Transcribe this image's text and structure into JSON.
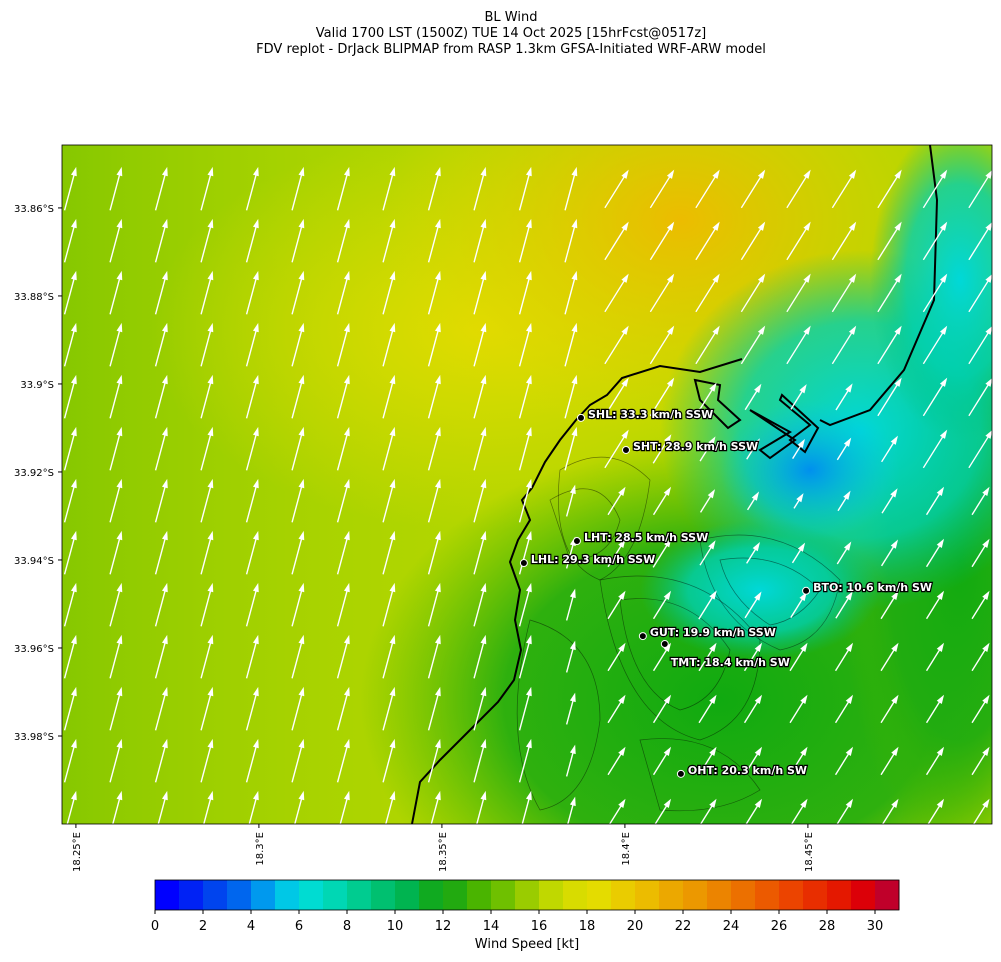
{
  "header": {
    "lines": [
      "BL Wind",
      "Valid 1700 LST (1500Z) TUE 14 Oct 2025 [15hrFcst@0517z]",
      "FDV replot - DrJack BLIPMAP from RASP 1.3km GFSA-Initiated WRF-ARW model"
    ]
  },
  "map": {
    "xlim": [
      18.2462,
      18.5003
    ],
    "ylim": [
      -34.0,
      -33.8457
    ],
    "xticks": [
      {
        "value": 18.25,
        "label": "18.25°E"
      },
      {
        "value": 18.3,
        "label": "18.3°E"
      },
      {
        "value": 18.35,
        "label": "18.35°E"
      },
      {
        "value": 18.4,
        "label": "18.4°E"
      },
      {
        "value": 18.45,
        "label": "18.45°E"
      }
    ],
    "yticks": [
      {
        "value": -33.86,
        "label": "33.86°S"
      },
      {
        "value": -33.88,
        "label": "33.88°S"
      },
      {
        "value": -33.9,
        "label": "33.9°S"
      },
      {
        "value": -33.92,
        "label": "33.92°S"
      },
      {
        "value": -33.94,
        "label": "33.94°S"
      },
      {
        "value": -33.96,
        "label": "33.96°S"
      },
      {
        "value": -33.98,
        "label": "33.98°S"
      }
    ],
    "stations": [
      {
        "label": "SHL: 33.3 km/h SSW",
        "lon": 18.388,
        "lat": -33.9077
      },
      {
        "label": "SHT: 28.9 km/h SSW",
        "lon": 18.4003,
        "lat": -33.915
      },
      {
        "label": "LHT: 28.5 km/h SSW",
        "lon": 18.3869,
        "lat": -33.9357
      },
      {
        "label": "LHL: 29.3 km/h SSW",
        "lon": 18.3724,
        "lat": -33.9407
      },
      {
        "label": "BTO: 10.6 km/h SW",
        "lon": 18.4495,
        "lat": -33.947
      },
      {
        "label": "GUT: 19.9 km/h SSW",
        "lon": 18.4049,
        "lat": -33.9573
      },
      {
        "label": "TMT: 18.4 km/h SW",
        "lon": 18.4109,
        "lat": -33.9591
      },
      {
        "label": "OHT: 20.3 km/h SW",
        "lon": 18.4153,
        "lat": -33.9886
      }
    ]
  },
  "colorbar": {
    "label": "Wind Speed [kt]",
    "lim": [
      0,
      31
    ],
    "ticks": [
      0,
      2,
      4,
      6,
      8,
      10,
      12,
      14,
      16,
      18,
      20,
      22,
      24,
      26,
      28,
      30
    ],
    "colors": [
      "#0000ff",
      "#0022f5",
      "#0044ee",
      "#0066ee",
      "#0099ee",
      "#00c8e6",
      "#00dcd2",
      "#00d7b4",
      "#00cc90",
      "#00c070",
      "#00b450",
      "#10aa20",
      "#22aa10",
      "#4ab400",
      "#6fc000",
      "#9acc00",
      "#c0d800",
      "#d8dc00",
      "#e4dc00",
      "#eacc00",
      "#ecbc00",
      "#eca800",
      "#ec9800",
      "#ec8400",
      "#ec7000",
      "#ec5a00",
      "#ec4400",
      "#e82e00",
      "#e41800",
      "#dc0008",
      "#c0002a"
    ]
  }
}
